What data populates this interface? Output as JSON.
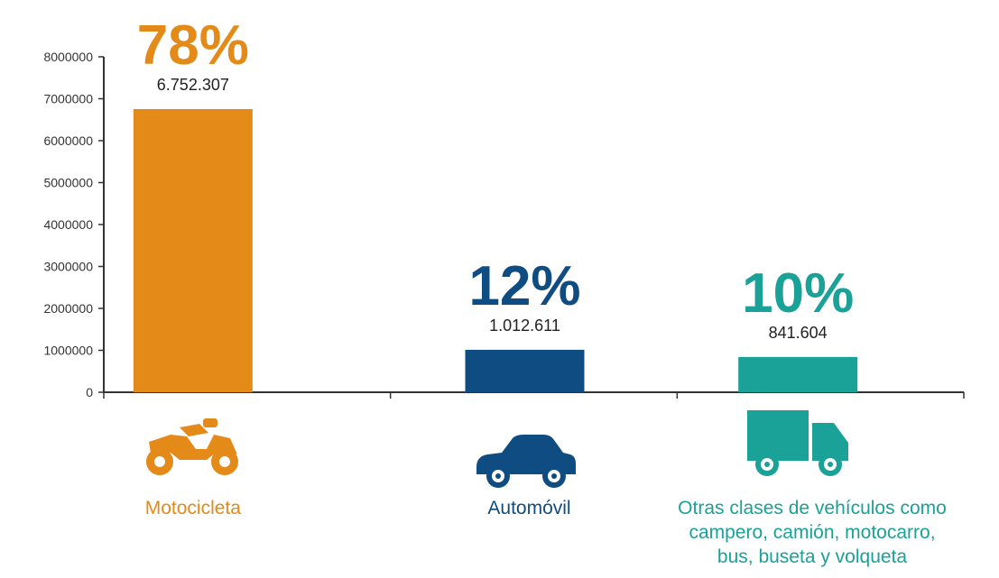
{
  "colors": {
    "motocicleta": "#E38A19",
    "automovil": "#0F4C81",
    "otras": "#1AA198",
    "axis": "#333333"
  },
  "chart_data": {
    "type": "bar",
    "categories": [
      "Motocicleta",
      "Automóvil",
      "Otras clases de vehículos como campero, camión, motocarro, bus, buseta y volqueta"
    ],
    "values": [
      6752307,
      1012611,
      841604
    ],
    "value_labels": [
      "6.752.307",
      "1.012.611",
      "841.604"
    ],
    "percent_labels": [
      "78%",
      "12%",
      "10%"
    ],
    "category_lines": [
      [
        "Motocicleta"
      ],
      [
        "Automóvil"
      ],
      [
        "Otras clases de vehículos como",
        "campero, camión, motocarro,",
        "bus, buseta y volqueta"
      ]
    ],
    "icons": [
      "motorcycle-icon",
      "car-icon",
      "truck-icon"
    ],
    "yticks": [
      "0",
      "1000000",
      "2000000",
      "3000000",
      "4000000",
      "5000000",
      "6000000",
      "7000000",
      "8000000"
    ],
    "ylim": [
      0,
      8000000
    ],
    "title": "",
    "xlabel": "",
    "ylabel": "",
    "grid": false,
    "legend": "none"
  }
}
